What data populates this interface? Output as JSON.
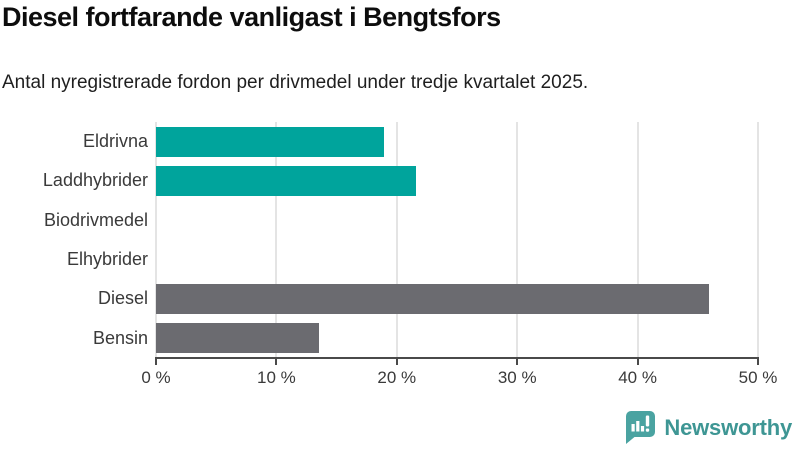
{
  "chart": {
    "title": "Diesel fortfarande vanligast i Bengtsfors",
    "subtitle": "Antal nyregistrerade fordon per drivmedel under tredje kvartalet 2025."
  },
  "chart_data": {
    "type": "bar",
    "orientation": "horizontal",
    "categories": [
      "Eldrivna",
      "Laddhybrider",
      "Biodrivmedel",
      "Elhybrider",
      "Diesel",
      "Bensin"
    ],
    "values": [
      18.9,
      21.6,
      0,
      0,
      45.9,
      13.5
    ],
    "bar_colors": [
      "#00a49c",
      "#00a49c",
      "#00a49c",
      "#00a49c",
      "#6b6b70",
      "#6b6b70"
    ],
    "title": "Diesel fortfarande vanligast i Bengtsfors",
    "xlabel": "",
    "ylabel": "",
    "xlim": [
      0,
      50
    ],
    "x_ticks": [
      0,
      10,
      20,
      30,
      40,
      50
    ],
    "x_tick_labels": [
      "0 %",
      "10 %",
      "20 %",
      "30 %",
      "40 %",
      "50 %"
    ],
    "grid": "vertical",
    "legend": "none",
    "colors": {
      "teal_bar": "#00a49c",
      "gray_bar": "#6b6b70",
      "gridline": "#e4e4e4",
      "axis": "#4a4a4a"
    }
  },
  "footer": {
    "brand": "Newsworthy",
    "brand_color": "#3e9694",
    "icon_color": "#4aa3a1"
  }
}
